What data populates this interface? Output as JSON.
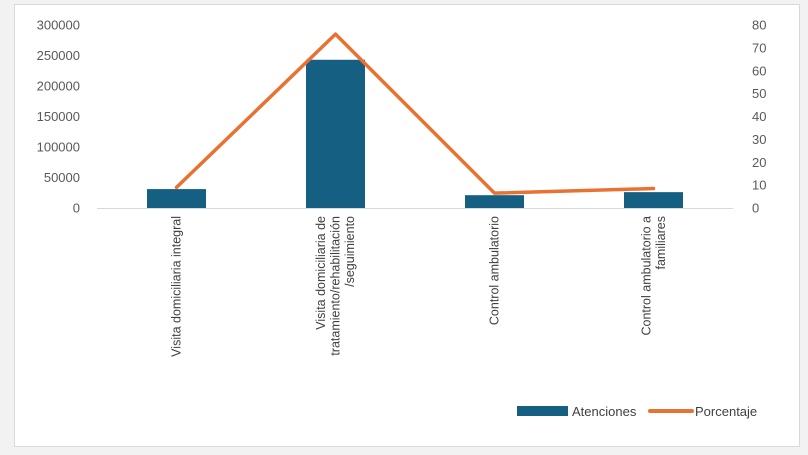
{
  "chart_data": {
    "type": "bar",
    "categories": [
      [
        "Visita domiciliaria integral"
      ],
      [
        "Visita domiciliaria de",
        "tratamiento/rehabilitación",
        "/seguimiento"
      ],
      [
        "Control ambulatorio"
      ],
      [
        "Control ambulatorio a",
        "familiares"
      ]
    ],
    "series": [
      {
        "name": "Atenciones",
        "type": "bar",
        "axis": "left",
        "color": "#156082",
        "values": [
          31000,
          243000,
          21000,
          26000
        ]
      },
      {
        "name": "Porcentaje",
        "type": "line",
        "axis": "right",
        "color": "#e97132",
        "values": [
          9,
          76,
          6.5,
          8.5
        ]
      }
    ],
    "y_left": {
      "ylim": [
        0,
        300000
      ],
      "ticks": [
        0,
        50000,
        100000,
        150000,
        200000,
        250000,
        300000
      ]
    },
    "y_right": {
      "ylim": [
        0,
        80
      ],
      "ticks": [
        0,
        10,
        20,
        30,
        40,
        50,
        60,
        70,
        80
      ]
    },
    "grid": false,
    "legend": "bottom-right"
  }
}
